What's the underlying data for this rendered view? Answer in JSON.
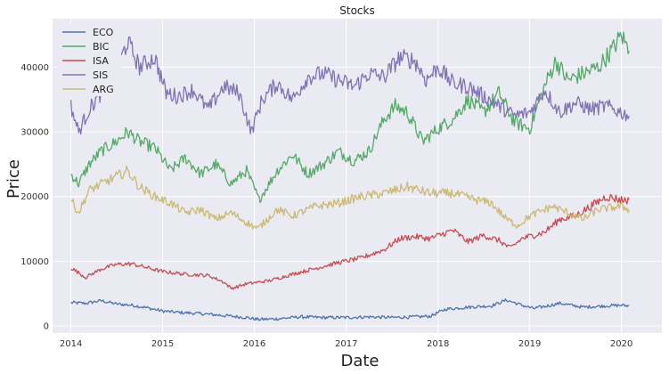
{
  "chart_data": {
    "type": "line",
    "title": "Stocks",
    "xlabel": "Date",
    "ylabel": "Price",
    "xlim": [
      "2013-10-20",
      "2020-06-10"
    ],
    "ylim": [
      -1100,
      47500
    ],
    "x_ticks": [
      {
        "date": "2014-01-01",
        "label": "2014"
      },
      {
        "date": "2015-01-01",
        "label": "2015"
      },
      {
        "date": "2016-01-01",
        "label": "2016"
      },
      {
        "date": "2017-01-01",
        "label": "2017"
      },
      {
        "date": "2018-01-01",
        "label": "2018"
      },
      {
        "date": "2019-01-01",
        "label": "2019"
      },
      {
        "date": "2020-01-01",
        "label": "2020"
      }
    ],
    "y_ticks": [
      {
        "value": 0,
        "label": "0"
      },
      {
        "value": 10000,
        "label": "10000"
      },
      {
        "value": 20000,
        "label": "20000"
      },
      {
        "value": 30000,
        "label": "30000"
      },
      {
        "value": 40000,
        "label": "40000"
      }
    ],
    "grid": true,
    "legend_position": "top-left",
    "series": [
      {
        "name": "ECO",
        "color": "#4c72b0",
        "points": [
          [
            "2014-01-01",
            3600
          ],
          [
            "2014-03-01",
            3500
          ],
          [
            "2014-05-01",
            3900
          ],
          [
            "2014-07-01",
            3400
          ],
          [
            "2014-09-01",
            3200
          ],
          [
            "2014-11-01",
            2800
          ],
          [
            "2015-01-01",
            2300
          ],
          [
            "2015-03-01",
            2100
          ],
          [
            "2015-06-01",
            1900
          ],
          [
            "2015-09-01",
            1600
          ],
          [
            "2015-12-01",
            1300
          ],
          [
            "2016-01-15",
            1000
          ],
          [
            "2016-04-01",
            1100
          ],
          [
            "2016-07-01",
            1400
          ],
          [
            "2016-10-01",
            1300
          ],
          [
            "2017-01-01",
            1300
          ],
          [
            "2017-04-01",
            1400
          ],
          [
            "2017-07-01",
            1300
          ],
          [
            "2017-10-01",
            1400
          ],
          [
            "2017-12-01",
            1500
          ],
          [
            "2018-02-01",
            2600
          ],
          [
            "2018-05-01",
            2900
          ],
          [
            "2018-08-01",
            3100
          ],
          [
            "2018-10-01",
            4000
          ],
          [
            "2018-12-01",
            3200
          ],
          [
            "2019-01-15",
            2700
          ],
          [
            "2019-03-01",
            3000
          ],
          [
            "2019-05-01",
            3500
          ],
          [
            "2019-08-01",
            2900
          ],
          [
            "2019-11-01",
            3100
          ],
          [
            "2020-01-01",
            3200
          ],
          [
            "2020-02-01",
            3100
          ]
        ]
      },
      {
        "name": "BIC",
        "color": "#55a868",
        "points": [
          [
            "2014-01-01",
            23500
          ],
          [
            "2014-02-01",
            22000
          ],
          [
            "2014-03-15",
            25000
          ],
          [
            "2014-05-01",
            27000
          ],
          [
            "2014-07-01",
            28500
          ],
          [
            "2014-08-15",
            30000
          ],
          [
            "2014-10-01",
            28500
          ],
          [
            "2014-12-01",
            27500
          ],
          [
            "2015-02-01",
            24000
          ],
          [
            "2015-04-01",
            26000
          ],
          [
            "2015-06-01",
            23500
          ],
          [
            "2015-08-01",
            25000
          ],
          [
            "2015-10-01",
            22000
          ],
          [
            "2015-12-01",
            24000
          ],
          [
            "2016-01-20",
            19500
          ],
          [
            "2016-04-01",
            24000
          ],
          [
            "2016-06-01",
            26500
          ],
          [
            "2016-08-01",
            23500
          ],
          [
            "2016-10-01",
            25000
          ],
          [
            "2016-12-01",
            27000
          ],
          [
            "2017-02-01",
            25500
          ],
          [
            "2017-04-01",
            27000
          ],
          [
            "2017-06-01",
            32000
          ],
          [
            "2017-07-15",
            34000
          ],
          [
            "2017-09-01",
            33000
          ],
          [
            "2017-11-01",
            28500
          ],
          [
            "2018-01-01",
            30500
          ],
          [
            "2018-03-01",
            32000
          ],
          [
            "2018-05-01",
            35000
          ],
          [
            "2018-07-01",
            33000
          ],
          [
            "2018-09-01",
            36000
          ],
          [
            "2018-11-01",
            31500
          ],
          [
            "2019-01-01",
            30500
          ],
          [
            "2019-03-01",
            37000
          ],
          [
            "2019-04-15",
            41000
          ],
          [
            "2019-06-01",
            38000
          ],
          [
            "2019-08-01",
            39000
          ],
          [
            "2019-10-01",
            40000
          ],
          [
            "2019-12-01",
            43000
          ],
          [
            "2020-01-01",
            45000
          ],
          [
            "2020-02-01",
            42500
          ]
        ]
      },
      {
        "name": "ISA",
        "color": "#c44e52",
        "points": [
          [
            "2014-01-01",
            9000
          ],
          [
            "2014-03-01",
            7500
          ],
          [
            "2014-05-01",
            8800
          ],
          [
            "2014-07-01",
            9500
          ],
          [
            "2014-09-01",
            9600
          ],
          [
            "2014-11-01",
            9000
          ],
          [
            "2015-01-01",
            8400
          ],
          [
            "2015-04-01",
            8000
          ],
          [
            "2015-07-01",
            7800
          ],
          [
            "2015-09-01",
            6800
          ],
          [
            "2015-10-01",
            5800
          ],
          [
            "2015-12-01",
            6500
          ],
          [
            "2016-03-01",
            7000
          ],
          [
            "2016-06-01",
            8000
          ],
          [
            "2016-09-01",
            8900
          ],
          [
            "2016-12-01",
            9800
          ],
          [
            "2017-03-01",
            10500
          ],
          [
            "2017-06-01",
            11800
          ],
          [
            "2017-08-01",
            13500
          ],
          [
            "2017-10-01",
            13800
          ],
          [
            "2017-12-01",
            13500
          ],
          [
            "2018-03-01",
            14800
          ],
          [
            "2018-05-01",
            13000
          ],
          [
            "2018-07-01",
            14000
          ],
          [
            "2018-09-01",
            13200
          ],
          [
            "2018-10-15",
            12000
          ],
          [
            "2018-12-01",
            13500
          ],
          [
            "2019-03-01",
            14500
          ],
          [
            "2019-05-01",
            16500
          ],
          [
            "2019-07-01",
            17000
          ],
          [
            "2019-09-01",
            18500
          ],
          [
            "2019-11-01",
            20000
          ],
          [
            "2020-01-01",
            19500
          ],
          [
            "2020-02-01",
            19500
          ]
        ]
      },
      {
        "name": "SIS",
        "color": "#8172b2",
        "points": [
          [
            "2014-01-01",
            34000
          ],
          [
            "2014-02-01",
            30000
          ],
          [
            "2014-03-15",
            33500
          ],
          [
            "2014-05-01",
            36000
          ],
          [
            "2014-06-15",
            38000
          ],
          [
            "2014-08-15",
            44000
          ],
          [
            "2014-10-01",
            40000
          ],
          [
            "2014-12-01",
            41500
          ],
          [
            "2015-01-15",
            36000
          ],
          [
            "2015-03-01",
            35500
          ],
          [
            "2015-05-01",
            36500
          ],
          [
            "2015-07-01",
            33500
          ],
          [
            "2015-09-01",
            37000
          ],
          [
            "2015-11-01",
            36000
          ],
          [
            "2015-12-20",
            30000
          ],
          [
            "2016-02-01",
            35000
          ],
          [
            "2016-04-01",
            37500
          ],
          [
            "2016-06-01",
            35000
          ],
          [
            "2016-08-01",
            38500
          ],
          [
            "2016-10-01",
            39000
          ],
          [
            "2016-12-01",
            38000
          ],
          [
            "2017-02-01",
            37000
          ],
          [
            "2017-04-01",
            39000
          ],
          [
            "2017-06-01",
            38500
          ],
          [
            "2017-08-01",
            41500
          ],
          [
            "2017-10-01",
            41000
          ],
          [
            "2017-11-15",
            38000
          ],
          [
            "2018-01-01",
            40000
          ],
          [
            "2018-03-01",
            37500
          ],
          [
            "2018-05-01",
            37000
          ],
          [
            "2018-07-01",
            35500
          ],
          [
            "2018-09-01",
            34000
          ],
          [
            "2018-11-01",
            32500
          ],
          [
            "2019-01-01",
            33000
          ],
          [
            "2019-03-01",
            36500
          ],
          [
            "2019-05-01",
            33000
          ],
          [
            "2019-07-01",
            34500
          ],
          [
            "2019-09-01",
            33500
          ],
          [
            "2019-11-01",
            34000
          ],
          [
            "2020-01-01",
            33000
          ],
          [
            "2020-02-01",
            32500
          ]
        ]
      },
      {
        "name": "ARG",
        "color": "#ccb974",
        "points": [
          [
            "2014-01-01",
            19500
          ],
          [
            "2014-02-01",
            17500
          ],
          [
            "2014-03-15",
            21000
          ],
          [
            "2014-06-01",
            22500
          ],
          [
            "2014-08-15",
            24000
          ],
          [
            "2014-10-01",
            21500
          ],
          [
            "2014-12-01",
            20000
          ],
          [
            "2015-02-01",
            19000
          ],
          [
            "2015-04-01",
            17500
          ],
          [
            "2015-06-01",
            18000
          ],
          [
            "2015-08-01",
            16500
          ],
          [
            "2015-10-01",
            17500
          ],
          [
            "2015-12-01",
            16000
          ],
          [
            "2016-01-15",
            15000
          ],
          [
            "2016-04-01",
            18000
          ],
          [
            "2016-06-01",
            17000
          ],
          [
            "2016-09-01",
            18500
          ],
          [
            "2016-12-01",
            19000
          ],
          [
            "2017-03-01",
            20000
          ],
          [
            "2017-06-01",
            20500
          ],
          [
            "2017-09-01",
            21500
          ],
          [
            "2017-12-01",
            20500
          ],
          [
            "2018-03-01",
            20500
          ],
          [
            "2018-06-01",
            19500
          ],
          [
            "2018-08-01",
            19000
          ],
          [
            "2018-10-01",
            16500
          ],
          [
            "2018-11-15",
            15500
          ],
          [
            "2019-01-01",
            17000
          ],
          [
            "2019-04-01",
            18500
          ],
          [
            "2019-06-01",
            17500
          ],
          [
            "2019-08-01",
            16500
          ],
          [
            "2019-10-01",
            18000
          ],
          [
            "2020-01-01",
            18500
          ],
          [
            "2020-02-01",
            18000
          ]
        ]
      }
    ]
  }
}
